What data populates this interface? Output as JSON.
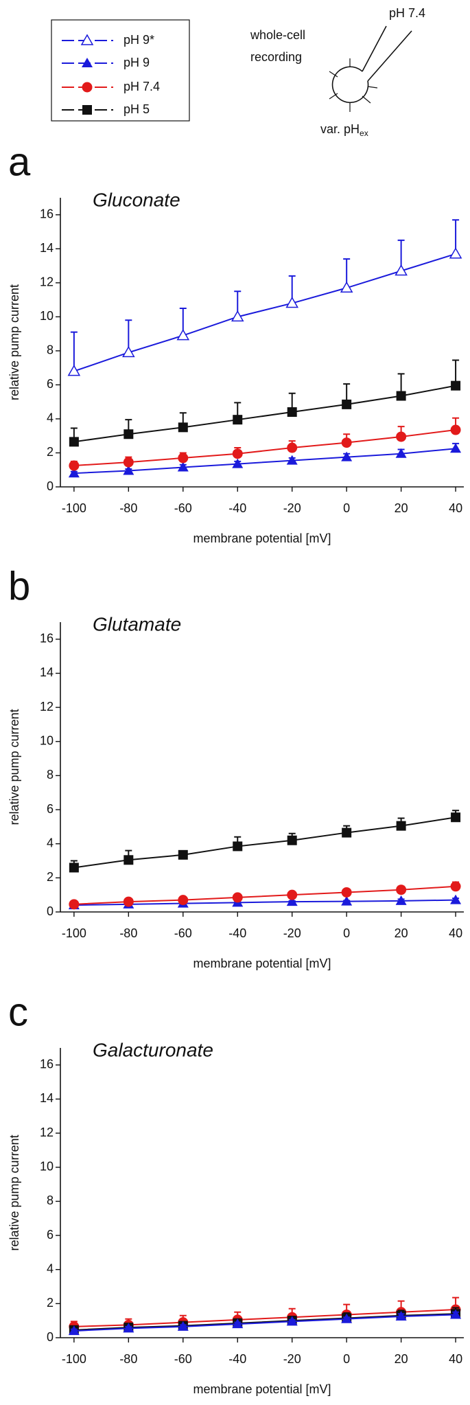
{
  "diagram": {
    "pipette": "pH 7.4",
    "label_line1": "whole-cell",
    "label_line2": "recording",
    "bath": "var. pH",
    "bath_sub": "ex"
  },
  "chart_data": [
    {
      "type": "line",
      "panel": "a",
      "title": "Gluconate",
      "x_label": "membrane potential [mV]",
      "y_label": "relative pump current",
      "x": [
        -100,
        -80,
        -60,
        -40,
        -20,
        0,
        20,
        40
      ],
      "xlim": [
        -105,
        43
      ],
      "xticks": [
        -100,
        -80,
        -60,
        -40,
        -20,
        0,
        20,
        40
      ],
      "ylim": [
        0,
        17
      ],
      "yticks": [
        0,
        2,
        4,
        6,
        8,
        10,
        12,
        14,
        16
      ],
      "series": [
        {
          "name": "pH 9*",
          "color": "#1a1adb",
          "marker": "triangle-open",
          "values": [
            6.8,
            7.9,
            8.9,
            10.0,
            10.8,
            11.7,
            12.7,
            13.7
          ],
          "errors": [
            2.3,
            1.9,
            1.6,
            1.5,
            1.6,
            1.7,
            1.8,
            2.0
          ]
        },
        {
          "name": "pH 9",
          "color": "#1a1adb",
          "marker": "triangle",
          "values": [
            0.8,
            0.95,
            1.15,
            1.35,
            1.55,
            1.75,
            1.95,
            2.25
          ],
          "errors": [
            0.1,
            0.1,
            0.15,
            0.15,
            0.15,
            0.2,
            0.25,
            0.3
          ]
        },
        {
          "name": "pH 7.4",
          "color": "#e21a1a",
          "marker": "circle",
          "values": [
            1.25,
            1.45,
            1.7,
            1.95,
            2.3,
            2.6,
            2.95,
            3.35
          ],
          "errors": [
            0.25,
            0.3,
            0.3,
            0.35,
            0.4,
            0.5,
            0.6,
            0.7
          ]
        },
        {
          "name": "pH 5",
          "color": "#111111",
          "marker": "square",
          "values": [
            2.65,
            3.1,
            3.5,
            3.95,
            4.4,
            4.85,
            5.35,
            5.95
          ],
          "errors": [
            0.8,
            0.85,
            0.85,
            1.0,
            1.1,
            1.2,
            1.3,
            1.5
          ]
        }
      ]
    },
    {
      "type": "line",
      "panel": "b",
      "title": "Glutamate",
      "x_label": "membrane potential [mV]",
      "y_label": "relative pump current",
      "x": [
        -100,
        -80,
        -60,
        -40,
        -20,
        0,
        20,
        40
      ],
      "xlim": [
        -105,
        43
      ],
      "xticks": [
        -100,
        -80,
        -60,
        -40,
        -20,
        0,
        20,
        40
      ],
      "ylim": [
        0,
        17
      ],
      "yticks": [
        0,
        2,
        4,
        6,
        8,
        10,
        12,
        14,
        16
      ],
      "series": [
        {
          "color": "#1a1adb",
          "marker": "triangle",
          "values": [
            0.4,
            0.45,
            0.5,
            0.55,
            0.6,
            0.62,
            0.65,
            0.7
          ],
          "errors": [
            0.05,
            0.05,
            0.05,
            0.05,
            0.05,
            0.05,
            0.1,
            0.1
          ]
        },
        {
          "color": "#e21a1a",
          "marker": "circle",
          "values": [
            0.45,
            0.6,
            0.7,
            0.85,
            1.0,
            1.15,
            1.3,
            1.5
          ],
          "errors": [
            0.05,
            0.05,
            0.05,
            0.05,
            0.1,
            0.15,
            0.2,
            0.25
          ]
        },
        {
          "color": "#111111",
          "marker": "square",
          "values": [
            2.6,
            3.05,
            3.35,
            3.85,
            4.2,
            4.65,
            5.05,
            5.55
          ],
          "errors": [
            0.4,
            0.55,
            0.15,
            0.55,
            0.4,
            0.4,
            0.45,
            0.4
          ]
        }
      ]
    },
    {
      "type": "line",
      "panel": "c",
      "title": "Galacturonate",
      "x_label": "membrane potential [mV]",
      "y_label": "relative pump current",
      "x": [
        -100,
        -80,
        -60,
        -40,
        -20,
        0,
        20,
        40
      ],
      "xlim": [
        -105,
        43
      ],
      "xticks": [
        -100,
        -80,
        -60,
        -40,
        -20,
        0,
        20,
        40
      ],
      "ylim": [
        0,
        17
      ],
      "yticks": [
        0,
        2,
        4,
        6,
        8,
        10,
        12,
        14,
        16
      ],
      "series": [
        {
          "color": "#e21a1a",
          "marker": "circle",
          "values": [
            0.65,
            0.75,
            0.9,
            1.05,
            1.2,
            1.35,
            1.5,
            1.65
          ],
          "errors": [
            0.3,
            0.35,
            0.4,
            0.45,
            0.5,
            0.6,
            0.65,
            0.7
          ]
        },
        {
          "color": "#111111",
          "marker": "square",
          "values": [
            0.45,
            0.6,
            0.7,
            0.85,
            1.0,
            1.15,
            1.3,
            1.4
          ],
          "errors": [
            0.15,
            0.2,
            0.2,
            0.25,
            0.25,
            0.3,
            0.3,
            0.35
          ]
        },
        {
          "color": "#1a1adb",
          "marker": "triangle",
          "values": [
            0.4,
            0.55,
            0.65,
            0.8,
            0.95,
            1.1,
            1.25,
            1.35
          ],
          "errors": [
            0.1,
            0.1,
            0.1,
            0.1,
            0.1,
            0.1,
            0.15,
            0.15
          ]
        }
      ]
    }
  ]
}
